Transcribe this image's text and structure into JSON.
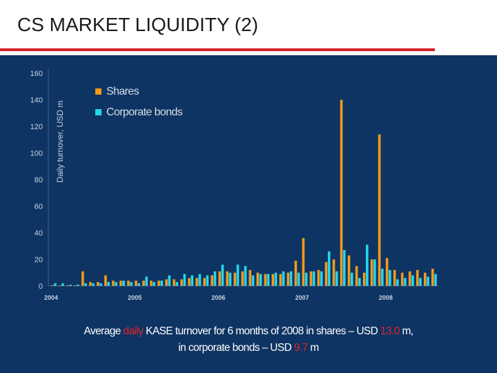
{
  "title": "CS MARKET LIQUIDITY (2)",
  "colors": {
    "background": "#0e3463",
    "shares": "#f39a1b",
    "bonds": "#25d6ee",
    "axis_text": "#c9d3e2",
    "accent_red": "#e3242b"
  },
  "chart_data": {
    "type": "bar",
    "ylabel": "Daily turnover, USD m",
    "ylim": [
      0,
      160
    ],
    "yticks": [
      0,
      20,
      40,
      60,
      80,
      100,
      120,
      140,
      160
    ],
    "xticks": [
      {
        "label": "2004",
        "index": 0
      },
      {
        "label": "2005",
        "index": 11
      },
      {
        "label": "2006",
        "index": 22
      },
      {
        "label": "2007",
        "index": 33
      },
      {
        "label": "2008",
        "index": 44
      }
    ],
    "legend_position": "top-left",
    "series": [
      {
        "name": "Shares",
        "color": "#f39a1b",
        "values": [
          0.5,
          0.5,
          0.5,
          0.5,
          11,
          3,
          3,
          8,
          4,
          4,
          4,
          4,
          4,
          4,
          4,
          5,
          5,
          5,
          6,
          6,
          6,
          8,
          11,
          11,
          10,
          11,
          12,
          10,
          9,
          9,
          9,
          10,
          19,
          36,
          11,
          12,
          18,
          20,
          140,
          23,
          15,
          10,
          20,
          114,
          21,
          12,
          10,
          11,
          12,
          10,
          13
        ]
      },
      {
        "name": "Corporate bonds",
        "color": "#25d6ee",
        "values": [
          2,
          2,
          1,
          1,
          2,
          2,
          2,
          3,
          3,
          4,
          3,
          2,
          7,
          3,
          4,
          8,
          3,
          9,
          8,
          9,
          8,
          11,
          16,
          10,
          16,
          15,
          8,
          9,
          9,
          10,
          11,
          11,
          10,
          10,
          11,
          11,
          26,
          11,
          27,
          10,
          6,
          31,
          20,
          13,
          12,
          5,
          6,
          8,
          6,
          7,
          9
        ]
      }
    ]
  },
  "caption": {
    "line1_a": "Average ",
    "line1_b": "daily",
    "line1_c": " KASE turnover for 6 months of 2008 in shares – USD ",
    "line1_d": "13.0",
    "line1_e": " m,",
    "line2_a": "in corporate bonds – USD ",
    "line2_b": "9.7",
    "line2_c": " m"
  }
}
